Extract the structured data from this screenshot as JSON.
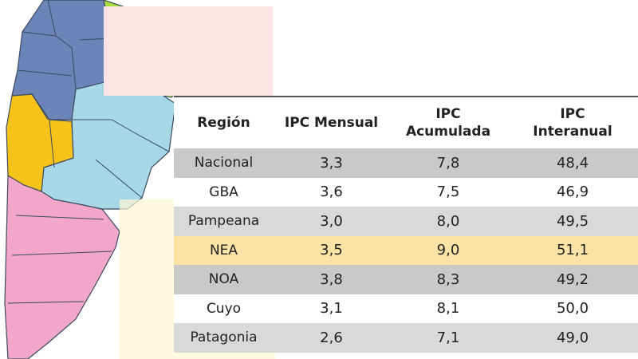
{
  "chart_data": {
    "type": "table",
    "columns": [
      "Región",
      "IPC Mensual",
      "IPC\nAcumulada",
      "IPC\nInteranual"
    ],
    "rows": [
      {
        "region": "Nacional",
        "mensual": "3,3",
        "acumulada": "7,8",
        "interanual": "48,4"
      },
      {
        "region": "GBA",
        "mensual": "3,6",
        "acumulada": "7,5",
        "interanual": "46,9"
      },
      {
        "region": "Pampeana",
        "mensual": "3,0",
        "acumulada": "8,0",
        "interanual": "49,5"
      },
      {
        "region": "NEA",
        "mensual": "3,5",
        "acumulada": "9,0",
        "interanual": "51,1"
      },
      {
        "region": "NOA",
        "mensual": "3,8",
        "acumulada": "8,3",
        "interanual": "49,2"
      },
      {
        "region": "Cuyo",
        "mensual": "3,1",
        "acumulada": "8,1",
        "interanual": "50,0"
      },
      {
        "region": "Patagonia",
        "mensual": "2,6",
        "acumulada": "7,1",
        "interanual": "49,0"
      }
    ],
    "row_colors": [
      "#c9c9c9",
      "#ffffff",
      "#d9d9d9",
      "#fbe3a6",
      "#c9c9c9",
      "#ffffff",
      "#d9d9d9"
    ],
    "region_colors": {
      "noa": "#6b85b8",
      "nea": "#a7e03a",
      "cuyo": "#f7c21a",
      "pampeana": "#a8d8e8",
      "patagonia": "#f3a7c8"
    }
  }
}
